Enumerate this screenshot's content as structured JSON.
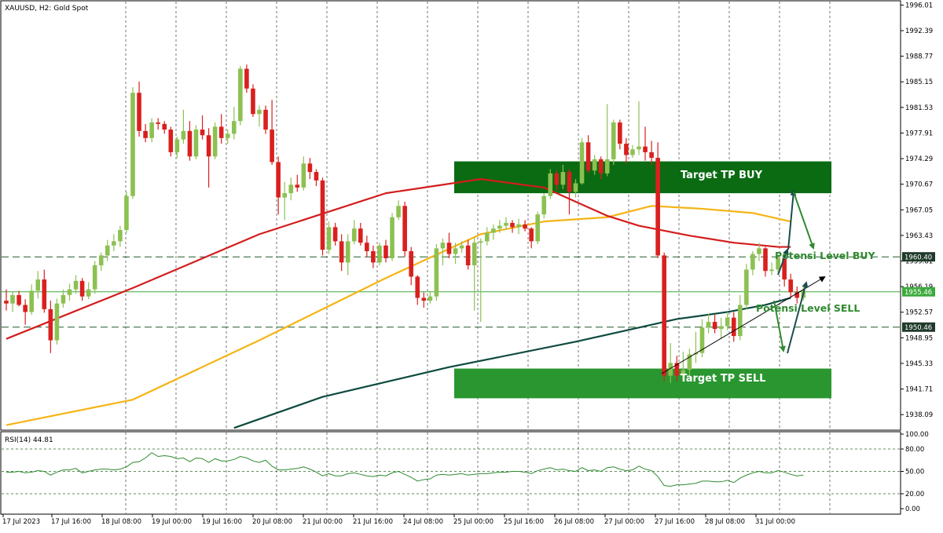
{
  "header": {
    "symbol_line": "XAUUSD, H2:  Gold Spot"
  },
  "rsi": {
    "label": "RSI(14) 44.81",
    "axis_ticks": [
      "100.00",
      "80.00",
      "50.00",
      "20.00",
      "0.00"
    ],
    "levels": [
      80,
      50,
      20
    ]
  },
  "price_axis": {
    "ticks": [
      "1996.01",
      "1992.39",
      "1988.77",
      "1985.15",
      "1981.53",
      "1977.91",
      "1974.29",
      "1970.67",
      "1967.05",
      "1963.43",
      "1959.81",
      "1956.19",
      "1952.57",
      "1948.95",
      "1945.33",
      "1941.71",
      "1938.09"
    ],
    "markers": [
      {
        "label": "1960.40",
        "value": 1960.4,
        "style": "dark"
      },
      {
        "label": "1955.46",
        "value": 1955.46,
        "style": "green"
      },
      {
        "label": "1950.46",
        "value": 1950.46,
        "style": "dark"
      }
    ]
  },
  "time_axis": {
    "ticks": [
      "17 Jul 2023",
      "17 Jul 16:00",
      "18 Jul 08:00",
      "19 Jul 00:00",
      "19 Jul 16:00",
      "20 Jul 08:00",
      "21 Jul 00:00",
      "21 Jul 16:00",
      "24 Jul 08:00",
      "25 Jul 00:00",
      "25 Jul 16:00",
      "26 Jul 08:00",
      "27 Jul 00:00",
      "27 Jul 16:00",
      "28 Jul 08:00",
      "31 Jul 00:00"
    ]
  },
  "annotations": {
    "buy_zone_label": "Target TP BUY",
    "sell_zone_label": "Target TP SELL",
    "buy_level_label": "Potensi Level BUY",
    "sell_level_label": "Potensi Level SELL"
  },
  "colors": {
    "bull": "#8cc152",
    "bear": "#d9201f",
    "ma_red": "#d41c1c",
    "ma_orange": "#f5b415",
    "ma_teal": "#0d4a3f",
    "zone_buy": "#0a6b12",
    "zone_sell": "#2a9630",
    "annotation_green": "#2f8a2f",
    "rsi_line": "#2e8b2e",
    "grid": "#555555"
  },
  "chart_data": {
    "type": "candlestick",
    "title": "XAUUSD, H2:  Gold Spot",
    "ylim": [
      1936.0,
      1996.5
    ],
    "x_tick_labels": [
      "17 Jul 2023",
      "17 Jul 16:00",
      "18 Jul 08:00",
      "19 Jul 00:00",
      "19 Jul 16:00",
      "20 Jul 08:00",
      "21 Jul 00:00",
      "21 Jul 16:00",
      "24 Jul 08:00",
      "25 Jul 00:00",
      "25 Jul 16:00",
      "26 Jul 08:00",
      "27 Jul 00:00",
      "27 Jul 16:00",
      "28 Jul 08:00",
      "31 Jul 00:00"
    ],
    "candles": [
      [
        1954.2,
        1955.8,
        1952.8,
        1953.8
      ],
      [
        1953.8,
        1955.5,
        1952.6,
        1955.0
      ],
      [
        1955.0,
        1955.6,
        1953.4,
        1953.6
      ],
      [
        1953.6,
        1954.4,
        1950.8,
        1952.6
      ],
      [
        1952.6,
        1956.5,
        1952.2,
        1955.6
      ],
      [
        1955.6,
        1958.4,
        1954.5,
        1957.2
      ],
      [
        1957.2,
        1958.6,
        1952.5,
        1953.0
      ],
      [
        1953.0,
        1954.2,
        1946.8,
        1948.6
      ],
      [
        1948.6,
        1954.5,
        1948.0,
        1953.8
      ],
      [
        1953.8,
        1955.8,
        1953.2,
        1955.0
      ],
      [
        1955.0,
        1956.6,
        1954.2,
        1955.8
      ],
      [
        1955.8,
        1957.8,
        1955.2,
        1957.0
      ],
      [
        1957.0,
        1957.4,
        1954.2,
        1954.8
      ],
      [
        1954.8,
        1956.8,
        1954.4,
        1955.8
      ],
      [
        1955.8,
        1959.8,
        1955.2,
        1959.2
      ],
      [
        1959.2,
        1961.0,
        1958.4,
        1960.6
      ],
      [
        1960.6,
        1962.8,
        1959.8,
        1962.0
      ],
      [
        1962.0,
        1963.6,
        1961.2,
        1962.6
      ],
      [
        1962.6,
        1964.8,
        1961.8,
        1964.2
      ],
      [
        1964.2,
        1969.6,
        1963.8,
        1969.0
      ],
      [
        1969.0,
        1984.4,
        1968.6,
        1983.6
      ],
      [
        1983.6,
        1985.2,
        1977.4,
        1978.2
      ],
      [
        1978.2,
        1979.2,
        1976.6,
        1977.2
      ],
      [
        1977.2,
        1980.0,
        1976.6,
        1979.4
      ],
      [
        1979.4,
        1980.0,
        1978.4,
        1979.2
      ],
      [
        1979.2,
        1979.6,
        1977.8,
        1978.4
      ],
      [
        1978.4,
        1978.8,
        1974.6,
        1975.2
      ],
      [
        1975.2,
        1977.4,
        1974.4,
        1977.0
      ],
      [
        1977.0,
        1981.2,
        1976.4,
        1978.2
      ],
      [
        1978.2,
        1979.6,
        1974.0,
        1974.6
      ],
      [
        1974.6,
        1979.0,
        1974.2,
        1978.4
      ],
      [
        1978.4,
        1980.4,
        1977.0,
        1977.6
      ],
      [
        1977.6,
        1978.6,
        1970.2,
        1974.6
      ],
      [
        1974.6,
        1979.4,
        1974.2,
        1978.8
      ],
      [
        1978.8,
        1980.6,
        1976.4,
        1977.2
      ],
      [
        1977.2,
        1978.4,
        1976.4,
        1977.8
      ],
      [
        1977.8,
        1981.6,
        1977.0,
        1979.6
      ],
      [
        1979.6,
        1987.4,
        1979.0,
        1987.0
      ],
      [
        1987.0,
        1987.6,
        1983.6,
        1984.2
      ],
      [
        1984.2,
        1984.8,
        1980.2,
        1980.6
      ],
      [
        1980.6,
        1981.8,
        1978.8,
        1981.2
      ],
      [
        1981.2,
        1981.8,
        1977.8,
        1978.4
      ],
      [
        1978.4,
        1982.6,
        1973.4,
        1973.8
      ],
      [
        1973.8,
        1974.6,
        1966.4,
        1968.8
      ],
      [
        1968.8,
        1971.0,
        1965.6,
        1969.4
      ],
      [
        1969.4,
        1971.6,
        1968.4,
        1970.6
      ],
      [
        1970.6,
        1972.0,
        1969.6,
        1970.2
      ],
      [
        1970.2,
        1974.6,
        1969.8,
        1973.6
      ],
      [
        1973.6,
        1974.4,
        1971.4,
        1972.4
      ],
      [
        1972.4,
        1972.8,
        1970.4,
        1971.2
      ],
      [
        1971.2,
        1971.6,
        1960.6,
        1961.4
      ],
      [
        1961.4,
        1965.4,
        1960.8,
        1964.6
      ],
      [
        1964.6,
        1965.2,
        1962.0,
        1962.6
      ],
      [
        1962.6,
        1963.6,
        1958.4,
        1959.6
      ],
      [
        1959.6,
        1963.6,
        1957.8,
        1962.6
      ],
      [
        1962.6,
        1965.6,
        1962.2,
        1964.4
      ],
      [
        1964.4,
        1965.2,
        1962.0,
        1962.4
      ],
      [
        1962.4,
        1963.4,
        1960.4,
        1961.2
      ],
      [
        1961.2,
        1962.0,
        1958.8,
        1959.6
      ],
      [
        1959.6,
        1962.4,
        1959.2,
        1962.0
      ],
      [
        1962.0,
        1962.8,
        1959.6,
        1960.2
      ],
      [
        1960.2,
        1966.6,
        1959.8,
        1966.0
      ],
      [
        1966.0,
        1968.4,
        1965.6,
        1967.6
      ],
      [
        1967.6,
        1968.2,
        1960.4,
        1961.2
      ],
      [
        1961.2,
        1961.8,
        1956.4,
        1957.6
      ],
      [
        1957.6,
        1957.8,
        1953.6,
        1954.6
      ],
      [
        1954.6,
        1955.4,
        1953.2,
        1954.2
      ],
      [
        1954.2,
        1955.6,
        1953.8,
        1954.8
      ],
      [
        1954.8,
        1962.2,
        1954.2,
        1961.6
      ],
      [
        1961.6,
        1963.0,
        1959.2,
        1962.4
      ],
      [
        1962.4,
        1963.8,
        1960.2,
        1960.8
      ],
      [
        1960.8,
        1962.4,
        1959.4,
        1961.6
      ],
      [
        1961.6,
        1962.6,
        1961.0,
        1962.0
      ],
      [
        1962.0,
        1962.8,
        1958.6,
        1959.2
      ],
      [
        1959.2,
        1963.2,
        1952.8,
        1962.4
      ],
      [
        1962.4,
        1963.0,
        1951.2,
        1962.6
      ],
      [
        1962.6,
        1964.6,
        1962.0,
        1963.8
      ],
      [
        1963.8,
        1965.0,
        1962.8,
        1964.4
      ],
      [
        1964.4,
        1965.6,
        1963.8,
        1964.8
      ],
      [
        1964.8,
        1966.0,
        1964.2,
        1965.2
      ],
      [
        1965.2,
        1965.6,
        1963.8,
        1964.6
      ],
      [
        1964.6,
        1965.8,
        1963.6,
        1965.0
      ],
      [
        1965.0,
        1965.6,
        1964.0,
        1964.4
      ],
      [
        1964.4,
        1964.6,
        1961.6,
        1962.6
      ],
      [
        1962.6,
        1966.8,
        1962.2,
        1966.4
      ],
      [
        1966.4,
        1969.4,
        1965.8,
        1969.0
      ],
      [
        1969.0,
        1972.8,
        1968.6,
        1972.2
      ],
      [
        1972.2,
        1972.6,
        1969.8,
        1970.6
      ],
      [
        1970.6,
        1973.4,
        1970.0,
        1972.4
      ],
      [
        1972.4,
        1972.8,
        1966.4,
        1969.6
      ],
      [
        1969.6,
        1971.4,
        1968.8,
        1970.8
      ],
      [
        1970.8,
        1977.2,
        1970.6,
        1976.6
      ],
      [
        1976.6,
        1977.6,
        1972.2,
        1972.6
      ],
      [
        1972.6,
        1974.8,
        1972.0,
        1974.2
      ],
      [
        1974.2,
        1974.6,
        1971.4,
        1972.2
      ],
      [
        1972.2,
        1982.0,
        1971.8,
        1974.2
      ],
      [
        1974.2,
        1979.8,
        1973.4,
        1979.4
      ],
      [
        1979.4,
        1979.8,
        1975.6,
        1976.4
      ],
      [
        1976.4,
        1977.2,
        1973.6,
        1974.8
      ],
      [
        1974.8,
        1976.2,
        1974.4,
        1975.6
      ],
      [
        1975.6,
        1982.4,
        1974.8,
        1976.0
      ],
      [
        1976.0,
        1978.8,
        1974.0,
        1975.2
      ],
      [
        1975.2,
        1976.8,
        1973.4,
        1974.4
      ],
      [
        1974.4,
        1976.6,
        1960.2,
        1960.6
      ],
      [
        1960.6,
        1961.0,
        1942.8,
        1943.6
      ],
      [
        1943.6,
        1948.2,
        1942.6,
        1945.4
      ],
      [
        1945.4,
        1946.4,
        1942.8,
        1943.6
      ],
      [
        1943.6,
        1947.0,
        1943.2,
        1944.4
      ],
      [
        1944.4,
        1947.4,
        1943.6,
        1946.6
      ],
      [
        1946.6,
        1949.8,
        1945.4,
        1946.8
      ],
      [
        1946.8,
        1951.6,
        1946.2,
        1950.4
      ],
      [
        1950.4,
        1952.4,
        1949.6,
        1951.2
      ],
      [
        1951.2,
        1952.2,
        1949.6,
        1950.2
      ],
      [
        1950.2,
        1951.8,
        1948.8,
        1950.6
      ],
      [
        1950.6,
        1952.6,
        1950.0,
        1951.8
      ],
      [
        1951.8,
        1952.6,
        1948.4,
        1949.2
      ],
      [
        1949.2,
        1955.0,
        1948.6,
        1953.6
      ],
      [
        1953.6,
        1959.4,
        1953.0,
        1958.6
      ],
      [
        1958.6,
        1961.2,
        1957.8,
        1960.8
      ],
      [
        1960.8,
        1962.4,
        1959.8,
        1961.6
      ],
      [
        1961.6,
        1961.8,
        1957.6,
        1958.4
      ],
      [
        1958.4,
        1959.6,
        1957.8,
        1958.6
      ],
      [
        1958.6,
        1960.6,
        1958.2,
        1960.2
      ],
      [
        1960.2,
        1960.6,
        1956.2,
        1957.2
      ],
      [
        1957.2,
        1958.0,
        1954.6,
        1955.4
      ],
      [
        1955.4,
        1956.2,
        1953.8,
        1954.6
      ],
      [
        1954.6,
        1956.4,
        1954.2,
        1955.6
      ]
    ],
    "ma_red": [
      [
        0,
        1948.8
      ],
      [
        20,
        1956.0
      ],
      [
        40,
        1963.6
      ],
      [
        60,
        1969.4
      ],
      [
        75,
        1971.4
      ],
      [
        85,
        1970.2
      ],
      [
        95,
        1966.2
      ],
      [
        100,
        1964.8
      ],
      [
        108,
        1963.4
      ],
      [
        115,
        1962.4
      ],
      [
        122,
        1961.8
      ],
      [
        124,
        1961.8
      ]
    ],
    "ma_orange": [
      [
        0,
        1936.6
      ],
      [
        20,
        1940.2
      ],
      [
        40,
        1948.6
      ],
      [
        60,
        1957.4
      ],
      [
        75,
        1963.6
      ],
      [
        85,
        1965.4
      ],
      [
        95,
        1966.0
      ],
      [
        102,
        1967.6
      ],
      [
        110,
        1967.2
      ],
      [
        118,
        1966.6
      ],
      [
        124,
        1965.4
      ]
    ],
    "ma_teal": [
      [
        36,
        1936.2
      ],
      [
        50,
        1940.6
      ],
      [
        70,
        1944.8
      ],
      [
        90,
        1948.4
      ],
      [
        100,
        1950.4
      ],
      [
        106,
        1951.6
      ],
      [
        114,
        1952.6
      ],
      [
        120,
        1953.6
      ],
      [
        124,
        1954.6
      ]
    ],
    "rsi_values": [
      49,
      49,
      50,
      48,
      49,
      51,
      50,
      45,
      49,
      52,
      52,
      54,
      48,
      50,
      52,
      53,
      53,
      52,
      53,
      56,
      62,
      63,
      68,
      75,
      70,
      71,
      70,
      67,
      68,
      63,
      68,
      67,
      62,
      67,
      64,
      64,
      66,
      70,
      68,
      64,
      62,
      65,
      57,
      52,
      52,
      53,
      54,
      56,
      53,
      49,
      44,
      47,
      44,
      44,
      47,
      48,
      46,
      44,
      43,
      45,
      44,
      48,
      50,
      46,
      42,
      37,
      39,
      40,
      45,
      46,
      45,
      46,
      47,
      45,
      46,
      47,
      47,
      48,
      49,
      49,
      50,
      50,
      49,
      47,
      51,
      53,
      55,
      52,
      53,
      51,
      50,
      55,
      51,
      52,
      50,
      55,
      56,
      53,
      51,
      52,
      57,
      53,
      51,
      43,
      31,
      30,
      32,
      32,
      33,
      34,
      37,
      37,
      36,
      36,
      38,
      35,
      41,
      45,
      48,
      50,
      48,
      48,
      51,
      49,
      46,
      44,
      45
    ],
    "zones": [
      {
        "name": "Target TP BUY",
        "y_low": 1969.4,
        "y_high": 1973.9,
        "x_start": 71,
        "x_end": 124
      },
      {
        "name": "Target TP SELL",
        "y_low": 1940.4,
        "y_high": 1944.6,
        "x_start": 71,
        "x_end": 124
      }
    ],
    "horizontal_levels": [
      1960.4,
      1955.46,
      1950.46
    ]
  }
}
